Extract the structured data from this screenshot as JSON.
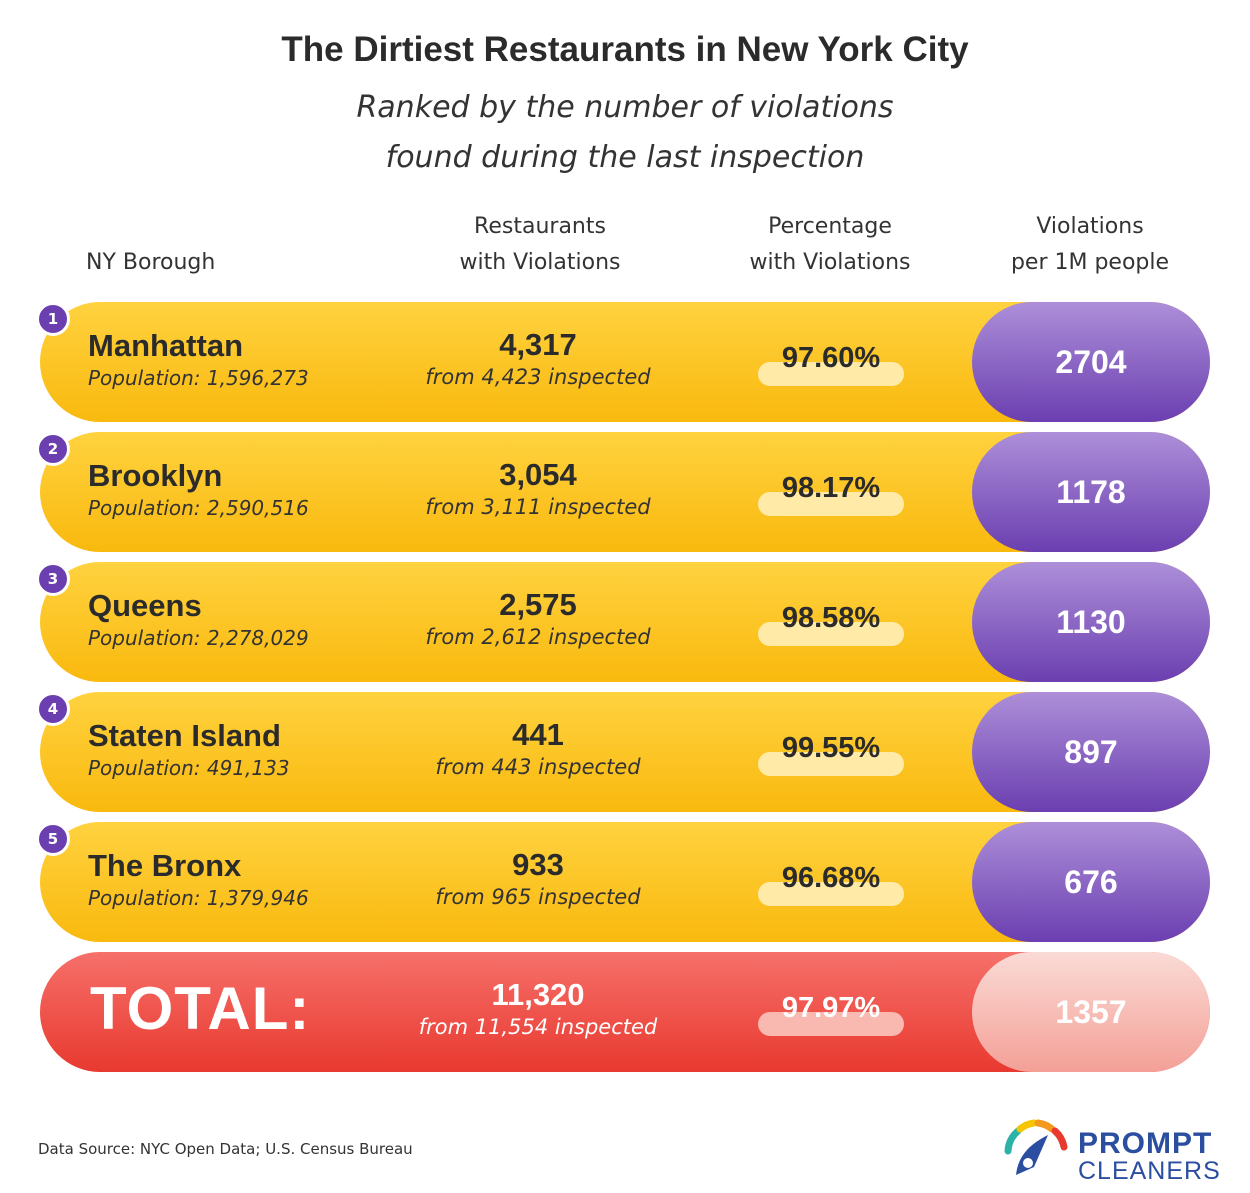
{
  "title": "The Dirtiest Restaurants in New York City",
  "subtitle": "Ranked by the number of violations\nfound during the last inspection",
  "headers": {
    "borough": "NY Borough",
    "restaurants": "Restaurants\nwith Violations",
    "percentage": "Percentage\nwith Violations",
    "violations": "Violations\nper 1M people"
  },
  "colors": {
    "row_fill": "#f9b90e",
    "pill_fill": "#6b3fb0",
    "total_fill": "#e8392f",
    "total_pill": "#f4a097",
    "logo_text": "#2b4ea0"
  },
  "chart_data": {
    "type": "table",
    "columns": [
      "NY Borough",
      "Restaurants with Violations",
      "Percentage with Violations",
      "Violations per 1M people"
    ],
    "rows": [
      {
        "rank": "1",
        "borough": "Manhattan",
        "population": "Population: 1,596,273",
        "restaurants": "4,317",
        "inspected": "from 4,423 inspected",
        "percentage": "97.60%",
        "per_million": "2704"
      },
      {
        "rank": "2",
        "borough": "Brooklyn",
        "population": "Population: 2,590,516",
        "restaurants": "3,054",
        "inspected": "from 3,111 inspected",
        "percentage": "98.17%",
        "per_million": "1178"
      },
      {
        "rank": "3",
        "borough": "Queens",
        "population": "Population: 2,278,029",
        "restaurants": "2,575",
        "inspected": "from 2,612 inspected",
        "percentage": "98.58%",
        "per_million": "1130"
      },
      {
        "rank": "4",
        "borough": "Staten Island",
        "population": "Population: 491,133",
        "restaurants": "441",
        "inspected": "from 443 inspected",
        "percentage": "99.55%",
        "per_million": "897"
      },
      {
        "rank": "5",
        "borough": "The Bronx",
        "population": "Population: 1,379,946",
        "restaurants": "933",
        "inspected": "from 965 inspected",
        "percentage": "96.68%",
        "per_million": "676"
      }
    ],
    "total": {
      "label": "TOTAL:",
      "restaurants": "11,320",
      "inspected": "from 11,554 inspected",
      "percentage": "97.97%",
      "per_million": "1357"
    }
  },
  "source": "Data Source: NYC Open Data; U.S. Census Bureau",
  "logo": {
    "line1": "PROMPT",
    "line2": "CLEANERS",
    "icon": "gauge-icon"
  }
}
